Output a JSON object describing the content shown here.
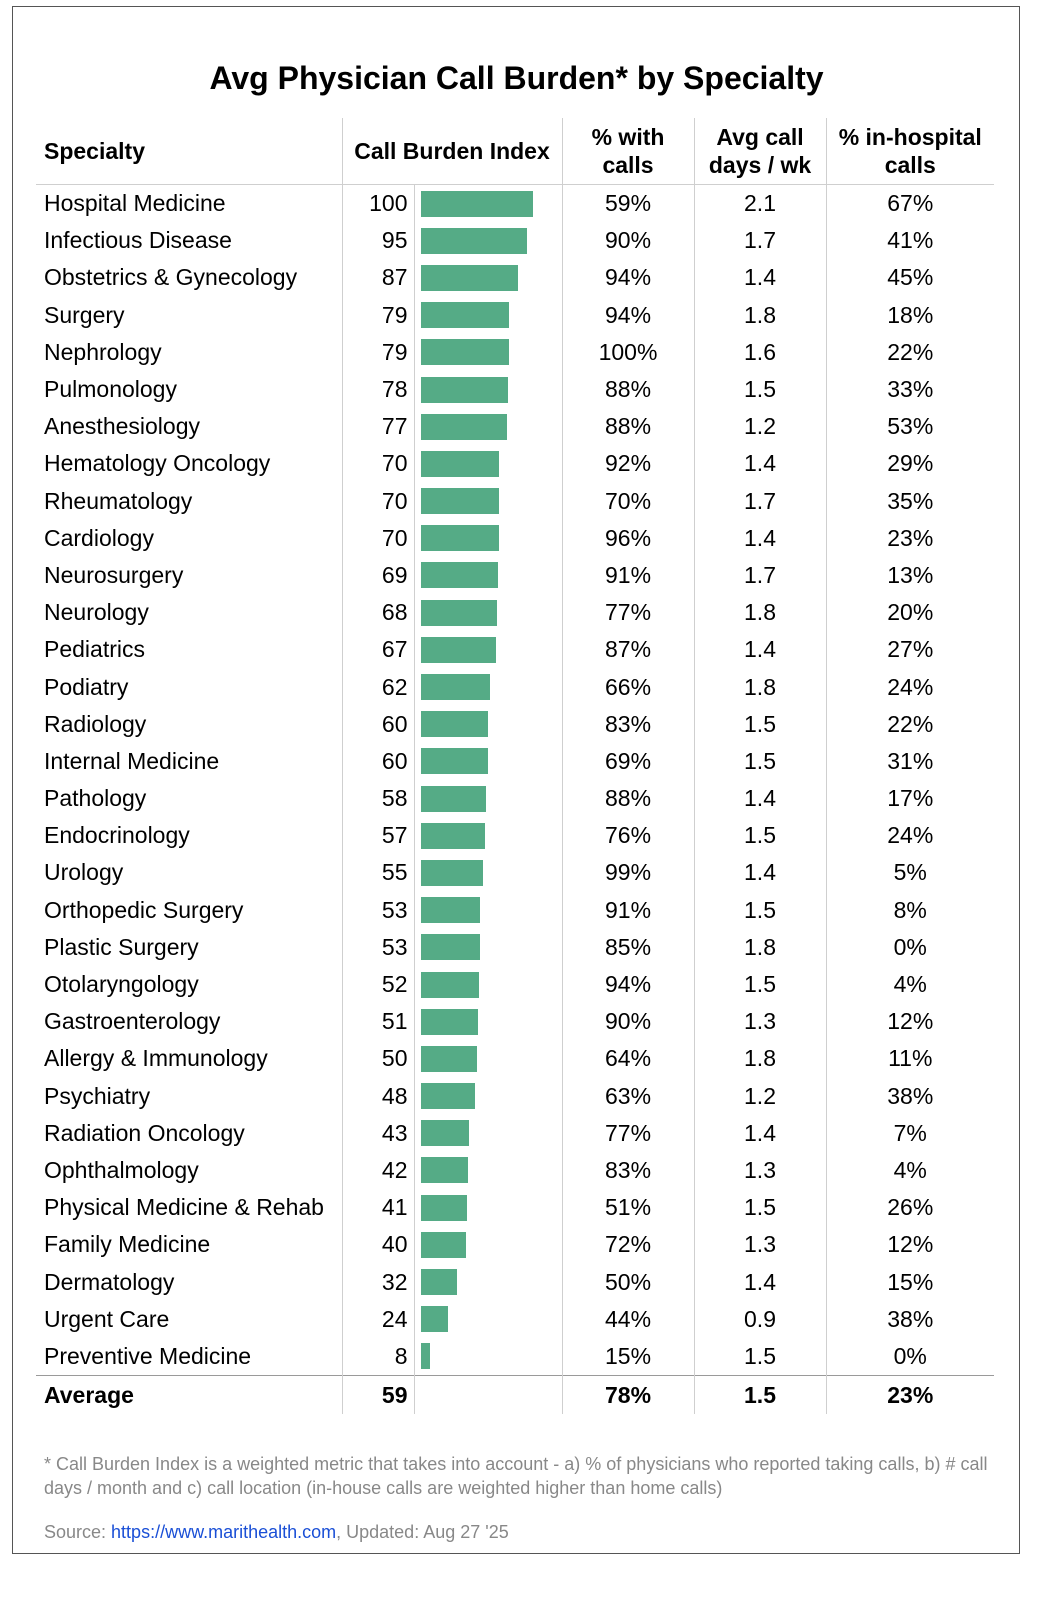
{
  "title": "Avg Physician Call Burden* by Specialty",
  "headers": {
    "specialty": "Specialty",
    "index": "Call Burden Index",
    "pct_calls": [
      "% with",
      "calls"
    ],
    "days": [
      "Avg call",
      "days / wk"
    ],
    "inhospital": [
      "% in-hospital",
      "calls"
    ]
  },
  "colors": {
    "bar": "#55ab86",
    "link": "#1a4fd6",
    "muted": "#888888"
  },
  "chart_data": {
    "type": "table",
    "title": "Avg Physician Call Burden* by Specialty",
    "columns": [
      "Specialty",
      "Call Burden Index",
      "% with calls",
      "Avg call days / wk",
      "% in-hospital calls"
    ],
    "bar_max": 100,
    "rows": [
      {
        "specialty": "Hospital Medicine",
        "index": 100,
        "pct_calls": "59%",
        "days": "2.1",
        "inhospital": "67%"
      },
      {
        "specialty": "Infectious Disease",
        "index": 95,
        "pct_calls": "90%",
        "days": "1.7",
        "inhospital": "41%"
      },
      {
        "specialty": "Obstetrics & Gynecology",
        "index": 87,
        "pct_calls": "94%",
        "days": "1.4",
        "inhospital": "45%"
      },
      {
        "specialty": "Surgery",
        "index": 79,
        "pct_calls": "94%",
        "days": "1.8",
        "inhospital": "18%"
      },
      {
        "specialty": "Nephrology",
        "index": 79,
        "pct_calls": "100%",
        "days": "1.6",
        "inhospital": "22%"
      },
      {
        "specialty": "Pulmonology",
        "index": 78,
        "pct_calls": "88%",
        "days": "1.5",
        "inhospital": "33%"
      },
      {
        "specialty": "Anesthesiology",
        "index": 77,
        "pct_calls": "88%",
        "days": "1.2",
        "inhospital": "53%"
      },
      {
        "specialty": "Hematology Oncology",
        "index": 70,
        "pct_calls": "92%",
        "days": "1.4",
        "inhospital": "29%"
      },
      {
        "specialty": "Rheumatology",
        "index": 70,
        "pct_calls": "70%",
        "days": "1.7",
        "inhospital": "35%"
      },
      {
        "specialty": "Cardiology",
        "index": 70,
        "pct_calls": "96%",
        "days": "1.4",
        "inhospital": "23%"
      },
      {
        "specialty": "Neurosurgery",
        "index": 69,
        "pct_calls": "91%",
        "days": "1.7",
        "inhospital": "13%"
      },
      {
        "specialty": "Neurology",
        "index": 68,
        "pct_calls": "77%",
        "days": "1.8",
        "inhospital": "20%"
      },
      {
        "specialty": "Pediatrics",
        "index": 67,
        "pct_calls": "87%",
        "days": "1.4",
        "inhospital": "27%"
      },
      {
        "specialty": "Podiatry",
        "index": 62,
        "pct_calls": "66%",
        "days": "1.8",
        "inhospital": "24%"
      },
      {
        "specialty": "Radiology",
        "index": 60,
        "pct_calls": "83%",
        "days": "1.5",
        "inhospital": "22%"
      },
      {
        "specialty": "Internal Medicine",
        "index": 60,
        "pct_calls": "69%",
        "days": "1.5",
        "inhospital": "31%"
      },
      {
        "specialty": "Pathology",
        "index": 58,
        "pct_calls": "88%",
        "days": "1.4",
        "inhospital": "17%"
      },
      {
        "specialty": "Endocrinology",
        "index": 57,
        "pct_calls": "76%",
        "days": "1.5",
        "inhospital": "24%"
      },
      {
        "specialty": "Urology",
        "index": 55,
        "pct_calls": "99%",
        "days": "1.4",
        "inhospital": "5%"
      },
      {
        "specialty": "Orthopedic Surgery",
        "index": 53,
        "pct_calls": "91%",
        "days": "1.5",
        "inhospital": "8%"
      },
      {
        "specialty": "Plastic Surgery",
        "index": 53,
        "pct_calls": "85%",
        "days": "1.8",
        "inhospital": "0%"
      },
      {
        "specialty": "Otolaryngology",
        "index": 52,
        "pct_calls": "94%",
        "days": "1.5",
        "inhospital": "4%"
      },
      {
        "specialty": "Gastroenterology",
        "index": 51,
        "pct_calls": "90%",
        "days": "1.3",
        "inhospital": "12%"
      },
      {
        "specialty": "Allergy & Immunology",
        "index": 50,
        "pct_calls": "64%",
        "days": "1.8",
        "inhospital": "11%"
      },
      {
        "specialty": "Psychiatry",
        "index": 48,
        "pct_calls": "63%",
        "days": "1.2",
        "inhospital": "38%"
      },
      {
        "specialty": "Radiation Oncology",
        "index": 43,
        "pct_calls": "77%",
        "days": "1.4",
        "inhospital": "7%"
      },
      {
        "specialty": "Ophthalmology",
        "index": 42,
        "pct_calls": "83%",
        "days": "1.3",
        "inhospital": "4%"
      },
      {
        "specialty": "Physical Medicine & Rehab",
        "index": 41,
        "pct_calls": "51%",
        "days": "1.5",
        "inhospital": "26%"
      },
      {
        "specialty": "Family Medicine",
        "index": 40,
        "pct_calls": "72%",
        "days": "1.3",
        "inhospital": "12%"
      },
      {
        "specialty": "Dermatology",
        "index": 32,
        "pct_calls": "50%",
        "days": "1.4",
        "inhospital": "15%"
      },
      {
        "specialty": "Urgent Care",
        "index": 24,
        "pct_calls": "44%",
        "days": "0.9",
        "inhospital": "38%"
      },
      {
        "specialty": "Preventive Medicine",
        "index": 8,
        "pct_calls": "15%",
        "days": "1.5",
        "inhospital": "0%"
      }
    ],
    "average": {
      "specialty": "Average",
      "index": 59,
      "pct_calls": "78%",
      "days": "1.5",
      "inhospital": "23%"
    }
  },
  "footnote": "* Call Burden Index is a weighted metric that takes into account - a) % of physicians who reported taking calls, b) # call days / month and c) call location (in-house calls are weighted higher than home calls)",
  "source": {
    "prefix": "Source: ",
    "link_text": "https://www.marithealth.com",
    "suffix": ", Updated: Aug 27 '25"
  }
}
